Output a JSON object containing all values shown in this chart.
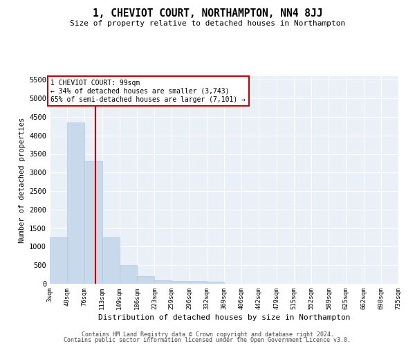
{
  "title": "1, CHEVIOT COURT, NORTHAMPTON, NN4 8JJ",
  "subtitle": "Size of property relative to detached houses in Northampton",
  "xlabel": "Distribution of detached houses by size in Northampton",
  "ylabel": "Number of detached properties",
  "footer_line1": "Contains HM Land Registry data © Crown copyright and database right 2024.",
  "footer_line2": "Contains public sector information licensed under the Open Government Licence v3.0.",
  "bar_color": "#c8d9ec",
  "bar_edge_color": "#b0c8e0",
  "background_color": "#eaf0f8",
  "grid_color": "#ffffff",
  "property_line_color": "#cc0000",
  "property_size_sqm": 99,
  "annotation_text": "1 CHEVIOT COURT: 99sqm\n← 34% of detached houses are smaller (3,743)\n65% of semi-detached houses are larger (7,101) →",
  "annotation_box_color": "#ffffff",
  "annotation_box_edge": "#cc0000",
  "bin_edges": [
    3,
    40,
    76,
    113,
    149,
    186,
    223,
    259,
    296,
    332,
    369,
    406,
    442,
    479,
    515,
    552,
    589,
    625,
    662,
    698,
    735
  ],
  "bin_labels": [
    "3sqm",
    "40sqm",
    "76sqm",
    "113sqm",
    "149sqm",
    "186sqm",
    "223sqm",
    "259sqm",
    "296sqm",
    "332sqm",
    "369sqm",
    "406sqm",
    "442sqm",
    "479sqm",
    "515sqm",
    "552sqm",
    "589sqm",
    "625sqm",
    "662sqm",
    "698sqm",
    "735sqm"
  ],
  "bar_heights": [
    1250,
    4350,
    3300,
    1250,
    500,
    200,
    100,
    75,
    75,
    50,
    0,
    0,
    0,
    0,
    0,
    0,
    0,
    0,
    0,
    0
  ],
  "ylim": [
    0,
    5600
  ],
  "yticks": [
    0,
    500,
    1000,
    1500,
    2000,
    2500,
    3000,
    3500,
    4000,
    4500,
    5000,
    5500
  ]
}
